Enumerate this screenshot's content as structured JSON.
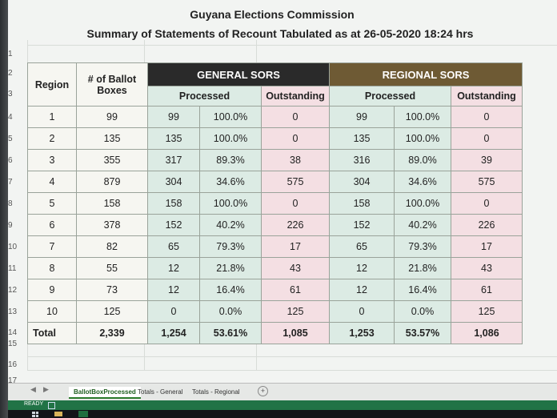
{
  "title_line1": "Guyana Elections Commission",
  "title_line2": "Summary of Statements of Recount Tabulated as at 26-05-2020 18:24 hrs",
  "row_numbers": [
    "1",
    "2",
    "3",
    "4",
    "5",
    "6",
    "7",
    "8",
    "9",
    "10",
    "11",
    "12",
    "13",
    "14",
    "15",
    "16",
    "17"
  ],
  "headers": {
    "region": "Region",
    "ballot_boxes": "# of Ballot Boxes",
    "general": "GENERAL SORS",
    "regional": "REGIONAL SORS",
    "processed": "Processed",
    "outstanding": "Outstanding"
  },
  "rows": [
    {
      "region": "1",
      "boxes": "99",
      "g_n": "99",
      "g_p": "100.0%",
      "g_o": "0",
      "r_n": "99",
      "r_p": "100.0%",
      "r_o": "0"
    },
    {
      "region": "2",
      "boxes": "135",
      "g_n": "135",
      "g_p": "100.0%",
      "g_o": "0",
      "r_n": "135",
      "r_p": "100.0%",
      "r_o": "0"
    },
    {
      "region": "3",
      "boxes": "355",
      "g_n": "317",
      "g_p": "89.3%",
      "g_o": "38",
      "r_n": "316",
      "r_p": "89.0%",
      "r_o": "39"
    },
    {
      "region": "4",
      "boxes": "879",
      "g_n": "304",
      "g_p": "34.6%",
      "g_o": "575",
      "r_n": "304",
      "r_p": "34.6%",
      "r_o": "575"
    },
    {
      "region": "5",
      "boxes": "158",
      "g_n": "158",
      "g_p": "100.0%",
      "g_o": "0",
      "r_n": "158",
      "r_p": "100.0%",
      "r_o": "0"
    },
    {
      "region": "6",
      "boxes": "378",
      "g_n": "152",
      "g_p": "40.2%",
      "g_o": "226",
      "r_n": "152",
      "r_p": "40.2%",
      "r_o": "226"
    },
    {
      "region": "7",
      "boxes": "82",
      "g_n": "65",
      "g_p": "79.3%",
      "g_o": "17",
      "r_n": "65",
      "r_p": "79.3%",
      "r_o": "17"
    },
    {
      "region": "8",
      "boxes": "55",
      "g_n": "12",
      "g_p": "21.8%",
      "g_o": "43",
      "r_n": "12",
      "r_p": "21.8%",
      "r_o": "43"
    },
    {
      "region": "9",
      "boxes": "73",
      "g_n": "12",
      "g_p": "16.4%",
      "g_o": "61",
      "r_n": "12",
      "r_p": "16.4%",
      "r_o": "61"
    },
    {
      "region": "10",
      "boxes": "125",
      "g_n": "0",
      "g_p": "0.0%",
      "g_o": "125",
      "r_n": "0",
      "r_p": "0.0%",
      "r_o": "125"
    }
  ],
  "total": {
    "label": "Total",
    "boxes": "2,339",
    "g_n": "1,254",
    "g_p": "53.61%",
    "g_o": "1,085",
    "r_n": "1,253",
    "r_p": "53.57%",
    "r_o": "1,086"
  },
  "sheet_tabs": [
    "BallotBoxProcessed",
    "Totals - General",
    "Totals - Regional"
  ],
  "active_tab": "BallotBoxProcessed",
  "add_sheet_symbol": "+",
  "status": "READY",
  "colors": {
    "general_header": "#2a2a2a",
    "regional_header": "#6e5a34",
    "processed_fill": "#dcebe4",
    "outstanding_fill": "#f4dfe3",
    "status_bar": "#217346"
  }
}
